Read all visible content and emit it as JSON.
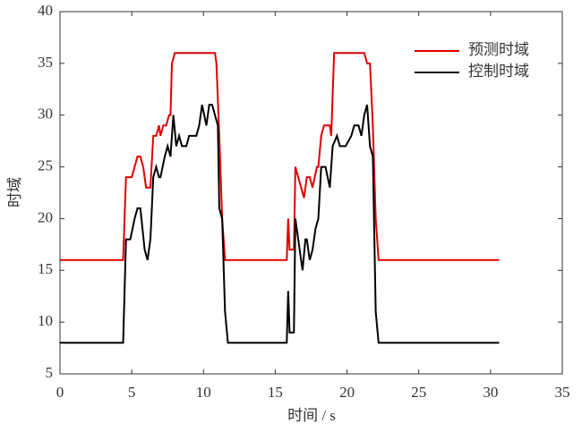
{
  "chart_data": {
    "type": "line",
    "xlabel": "时间 / s",
    "ylabel": "时域",
    "xlim": [
      0,
      35
    ],
    "ylim": [
      5,
      40
    ],
    "xticks": [
      0,
      5,
      10,
      15,
      20,
      25,
      30,
      35
    ],
    "yticks": [
      5,
      10,
      15,
      20,
      25,
      30,
      35,
      40
    ],
    "legend": "upper right",
    "series": [
      {
        "name": "预测时域",
        "color": "#e00000",
        "x": [
          0,
          4.4,
          4.6,
          5.0,
          5.2,
          5.4,
          5.6,
          5.8,
          6.0,
          6.3,
          6.5,
          6.7,
          6.9,
          7.0,
          7.2,
          7.4,
          7.6,
          7.7,
          7.8,
          8.0,
          10.8,
          10.9,
          11.1,
          11.3,
          11.5,
          15.8,
          15.9,
          16.0,
          16.3,
          16.4,
          16.6,
          16.8,
          17.0,
          17.2,
          17.4,
          17.6,
          17.9,
          18.0,
          18.2,
          18.4,
          18.8,
          18.9,
          19.1,
          21.2,
          21.4,
          21.6,
          21.8,
          22.0,
          22.2,
          30.6
        ],
        "values": [
          16,
          16,
          24,
          24,
          25,
          26,
          26,
          25,
          23,
          23,
          28,
          28,
          29,
          28,
          29,
          29,
          30,
          30,
          35,
          36,
          36,
          35,
          28,
          20,
          16,
          16,
          20,
          17,
          17,
          25,
          24,
          23,
          22,
          24,
          24,
          23,
          25,
          25,
          28,
          29,
          29,
          28,
          36,
          36,
          35,
          35,
          29,
          20,
          16,
          16
        ]
      },
      {
        "name": "控制时域",
        "color": "#000000",
        "x": [
          0,
          4.4,
          4.6,
          4.9,
          5.2,
          5.4,
          5.6,
          5.9,
          6.1,
          6.3,
          6.5,
          6.7,
          6.9,
          7.0,
          7.3,
          7.5,
          7.7,
          7.9,
          8.1,
          8.3,
          8.5,
          8.8,
          9.0,
          9.5,
          9.7,
          9.9,
          10.2,
          10.4,
          10.6,
          10.8,
          11.0,
          11.1,
          11.3,
          11.5,
          11.7,
          15.8,
          15.9,
          16.0,
          16.3,
          16.4,
          16.7,
          16.9,
          17.1,
          17.2,
          17.4,
          17.6,
          17.8,
          18.0,
          18.2,
          18.5,
          18.8,
          19.0,
          19.3,
          19.5,
          19.9,
          20.3,
          20.5,
          20.8,
          21.0,
          21.2,
          21.4,
          21.6,
          21.8,
          22.0,
          22.2,
          30.6
        ],
        "values": [
          8,
          8,
          18,
          18,
          20,
          21,
          21,
          17,
          16,
          18,
          24,
          25,
          24,
          24,
          26,
          27,
          26,
          30,
          27,
          28,
          27,
          27,
          28,
          28,
          29,
          31,
          29,
          31,
          31,
          30,
          29,
          21,
          20,
          11,
          8,
          8,
          13,
          9,
          9,
          20,
          17,
          15,
          18,
          18,
          16,
          17,
          19,
          20,
          25,
          25,
          23,
          27,
          28,
          27,
          27,
          28,
          29,
          29,
          28,
          30,
          31,
          27,
          26,
          11,
          8,
          8
        ]
      }
    ]
  }
}
